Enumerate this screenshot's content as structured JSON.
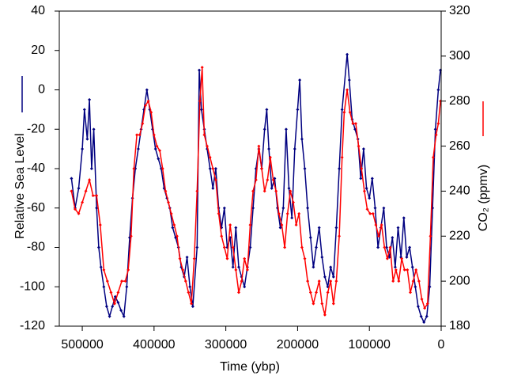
{
  "chart_data": {
    "type": "line",
    "x_label": "Time (ybp)",
    "y_label": "Relative Sea Level",
    "y2_label": "CO₂ (ppmv)",
    "xlim": [
      532000,
      0
    ],
    "xticks": [
      500000,
      400000,
      300000,
      200000,
      100000,
      0
    ],
    "ylim": [
      -120,
      40
    ],
    "yticks": [
      -120,
      -100,
      -80,
      -60,
      -40,
      -20,
      0,
      20,
      40
    ],
    "y2lim": [
      180,
      320
    ],
    "y2ticks": [
      180,
      200,
      220,
      240,
      260,
      280,
      300,
      320
    ],
    "series": [
      {
        "name": "Relative Sea Level",
        "color": "#000080",
        "x": [
          515000,
          510000,
          505000,
          500000,
          497000,
          493000,
          490000,
          487000,
          484000,
          480000,
          477000,
          474000,
          470000,
          466000,
          462000,
          458000,
          454000,
          450000,
          446000,
          442000,
          438000,
          434000,
          430000,
          426000,
          422000,
          418000,
          414000,
          410000,
          406000,
          402000,
          398000,
          394000,
          390000,
          386000,
          382000,
          378000,
          374000,
          370000,
          366000,
          362000,
          358000,
          354000,
          350000,
          346000,
          340000,
          337000,
          334000,
          330000,
          326000,
          322000,
          318000,
          314000,
          310000,
          306000,
          302000,
          298000,
          294000,
          290000,
          286000,
          282000,
          278000,
          274000,
          270000,
          266000,
          262000,
          258000,
          254000,
          250000,
          246000,
          243000,
          240000,
          236000,
          232000,
          228000,
          224000,
          220000,
          216000,
          212000,
          208000,
          204000,
          200000,
          197000,
          194000,
          190000,
          186000,
          182000,
          178000,
          174000,
          170000,
          166000,
          162000,
          158000,
          154000,
          150000,
          146000,
          142000,
          138000,
          131000,
          128000,
          124000,
          120000,
          116000,
          112000,
          108000,
          104000,
          100000,
          96000,
          92000,
          88000,
          84000,
          80000,
          76000,
          72000,
          68000,
          64000,
          60000,
          56000,
          52000,
          48000,
          44000,
          40000,
          36000,
          32000,
          28000,
          24000,
          20000,
          16000,
          12000,
          8000,
          4000,
          1000
        ],
        "values": [
          -45,
          -60,
          -50,
          -30,
          -10,
          -25,
          -5,
          -40,
          -20,
          -60,
          -80,
          -90,
          -100,
          -110,
          -115,
          -110,
          -105,
          -108,
          -112,
          -115,
          -100,
          -75,
          -55,
          -40,
          -30,
          -20,
          -10,
          0,
          -10,
          -20,
          -30,
          -35,
          -40,
          -50,
          -55,
          -60,
          -70,
          -75,
          -80,
          -90,
          -95,
          -85,
          -100,
          -110,
          -80,
          10,
          -10,
          -20,
          -30,
          -40,
          -50,
          -40,
          -60,
          -70,
          -60,
          -80,
          -75,
          -90,
          -70,
          -90,
          -95,
          -100,
          -90,
          -80,
          -60,
          -40,
          -30,
          -40,
          -20,
          -10,
          -30,
          -50,
          -45,
          -60,
          -70,
          -60,
          -20,
          -50,
          -65,
          -30,
          -10,
          5,
          -25,
          -40,
          -60,
          -75,
          -90,
          -80,
          -70,
          -85,
          -95,
          -100,
          -90,
          -95,
          -70,
          -40,
          -10,
          18,
          5,
          -15,
          -20,
          -25,
          -45,
          -30,
          -50,
          -55,
          -45,
          -60,
          -80,
          -70,
          -60,
          -80,
          -85,
          -75,
          -90,
          -70,
          -85,
          -65,
          -85,
          -80,
          -90,
          -100,
          -110,
          -115,
          -118,
          -115,
          -100,
          -60,
          -20,
          0,
          10
        ]
      },
      {
        "name": "CO₂ (ppmv)",
        "color": "#ff0000",
        "axis": "y2",
        "x": [
          515000,
          510000,
          505000,
          500000,
          495000,
          490000,
          485000,
          480000,
          475000,
          470000,
          465000,
          460000,
          455000,
          450000,
          445000,
          440000,
          436000,
          432000,
          428000,
          424000,
          420000,
          416000,
          412000,
          408000,
          404000,
          400000,
          396000,
          392000,
          388000,
          384000,
          380000,
          376000,
          372000,
          368000,
          364000,
          360000,
          356000,
          352000,
          348000,
          344000,
          340000,
          336000,
          333000,
          330000,
          326000,
          322000,
          318000,
          314000,
          310000,
          306000,
          302000,
          298000,
          294000,
          290000,
          286000,
          282000,
          278000,
          274000,
          270000,
          266000,
          262000,
          258000,
          254000,
          250000,
          246000,
          242000,
          238000,
          234000,
          230000,
          226000,
          222000,
          218000,
          214000,
          210000,
          206000,
          202000,
          198000,
          194000,
          190000,
          186000,
          182000,
          178000,
          174000,
          170000,
          166000,
          162000,
          158000,
          154000,
          150000,
          146000,
          142000,
          138000,
          135000,
          131000,
          127000,
          123000,
          119000,
          115000,
          111000,
          107000,
          103000,
          99000,
          95000,
          91000,
          87000,
          83000,
          79000,
          75000,
          71000,
          67000,
          63000,
          59000,
          55000,
          51000,
          47000,
          43000,
          39000,
          35000,
          31000,
          27000,
          23000,
          19000,
          15000,
          11000,
          7000,
          4000,
          1000
        ],
        "values": [
          240,
          232,
          230,
          235,
          240,
          245,
          238,
          238,
          225,
          205,
          200,
          195,
          190,
          195,
          200,
          200,
          205,
          220,
          250,
          265,
          265,
          270,
          278,
          280,
          275,
          265,
          260,
          258,
          250,
          240,
          235,
          230,
          225,
          220,
          210,
          205,
          200,
          195,
          190,
          210,
          240,
          280,
          295,
          265,
          260,
          255,
          250,
          245,
          230,
          220,
          215,
          210,
          225,
          215,
          205,
          195,
          200,
          210,
          205,
          225,
          240,
          245,
          260,
          250,
          240,
          245,
          255,
          245,
          240,
          230,
          225,
          215,
          230,
          240,
          235,
          225,
          230,
          215,
          210,
          200,
          195,
          190,
          195,
          200,
          190,
          185,
          195,
          200,
          190,
          200,
          220,
          255,
          275,
          285,
          275,
          270,
          270,
          260,
          250,
          240,
          232,
          230,
          230,
          225,
          220,
          225,
          215,
          210,
          215,
          200,
          205,
          200,
          210,
          205,
          205,
          195,
          200,
          205,
          200,
          192,
          188,
          190,
          220,
          255,
          265,
          270,
          280
        ]
      }
    ]
  }
}
